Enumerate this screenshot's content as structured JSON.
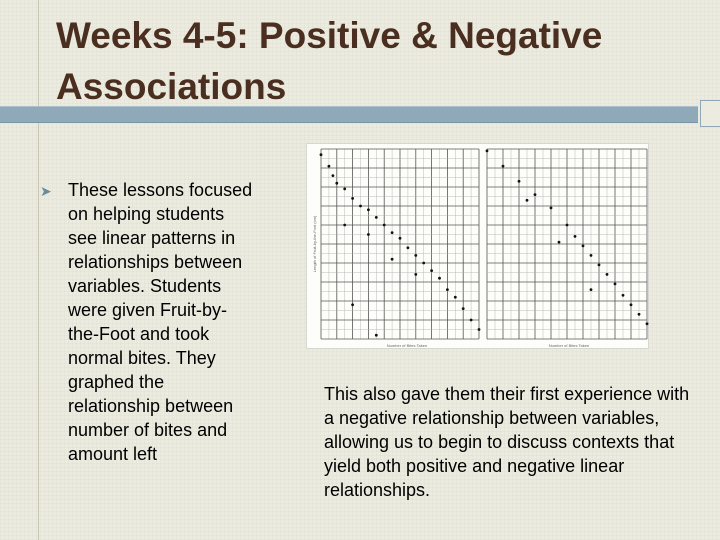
{
  "slide": {
    "title": "Weeks 4-5: Positive & Negative Associations",
    "bullet_text": "These lessons focused on helping students see linear patterns in relationships between variables. Students were given Fruit-by-the-Foot and took normal bites. They graphed the relationship between number of bites and amount left",
    "right_text": "This also gave them their first experience with a negative relationship between variables, allowing us to begin to discuss contexts that yield both positive and negative linear relationships.",
    "bullet_icon": "arrowhead-bullet-icon",
    "colors": {
      "title": "#4a2e20",
      "accent_bar": "#8fa9b8",
      "bullet": "#6a8b9c",
      "background": "#ecebdf"
    }
  },
  "chart_data": [
    {
      "type": "scatter",
      "title": "",
      "xlabel": "Number of Bites Taken",
      "ylabel": "Length of Fruit-by-the-Foot (cm)",
      "xlim": [
        0,
        20
      ],
      "ylim": [
        0,
        10
      ],
      "grid": true,
      "points": [
        {
          "x": 0,
          "y": 9.7
        },
        {
          "x": 1,
          "y": 9.1
        },
        {
          "x": 1.5,
          "y": 8.6
        },
        {
          "x": 2,
          "y": 8.2
        },
        {
          "x": 3,
          "y": 7.9
        },
        {
          "x": 4,
          "y": 7.4
        },
        {
          "x": 5,
          "y": 7.0
        },
        {
          "x": 6,
          "y": 6.8
        },
        {
          "x": 7,
          "y": 6.4
        },
        {
          "x": 8,
          "y": 6.0
        },
        {
          "x": 9,
          "y": 5.6
        },
        {
          "x": 10,
          "y": 5.3
        },
        {
          "x": 11,
          "y": 4.8
        },
        {
          "x": 12,
          "y": 4.4
        },
        {
          "x": 13,
          "y": 4.0
        },
        {
          "x": 14,
          "y": 3.6
        },
        {
          "x": 15,
          "y": 3.2
        },
        {
          "x": 16,
          "y": 2.6
        },
        {
          "x": 17,
          "y": 2.2
        },
        {
          "x": 18,
          "y": 1.6
        },
        {
          "x": 19,
          "y": 1.0
        },
        {
          "x": 20,
          "y": 0.5
        },
        {
          "x": 3,
          "y": 6.0
        },
        {
          "x": 6,
          "y": 5.5
        },
        {
          "x": 9,
          "y": 4.2
        },
        {
          "x": 12,
          "y": 3.4
        },
        {
          "x": 4,
          "y": 1.8
        },
        {
          "x": 7,
          "y": 0.2
        }
      ]
    },
    {
      "type": "scatter",
      "title": "",
      "xlabel": "Number of Bites Taken",
      "ylabel": "",
      "xlim": [
        0,
        20
      ],
      "ylim": [
        0,
        10
      ],
      "grid": true,
      "points": [
        {
          "x": 0,
          "y": 9.9
        },
        {
          "x": 2,
          "y": 9.1
        },
        {
          "x": 4,
          "y": 8.3
        },
        {
          "x": 6,
          "y": 7.6
        },
        {
          "x": 8,
          "y": 6.9
        },
        {
          "x": 10,
          "y": 6.0
        },
        {
          "x": 11,
          "y": 5.4
        },
        {
          "x": 12,
          "y": 4.9
        },
        {
          "x": 13,
          "y": 4.4
        },
        {
          "x": 14,
          "y": 3.9
        },
        {
          "x": 15,
          "y": 3.4
        },
        {
          "x": 16,
          "y": 2.9
        },
        {
          "x": 17,
          "y": 2.3
        },
        {
          "x": 18,
          "y": 1.8
        },
        {
          "x": 19,
          "y": 1.3
        },
        {
          "x": 20,
          "y": 0.8
        },
        {
          "x": 5,
          "y": 7.3
        },
        {
          "x": 9,
          "y": 5.1
        },
        {
          "x": 13,
          "y": 2.6
        }
      ]
    }
  ]
}
